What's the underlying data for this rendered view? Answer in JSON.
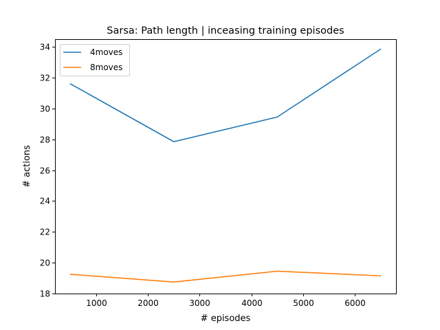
{
  "chart_data": {
    "type": "line",
    "title": "Sarsa: Path length | inceasing training episodes",
    "xlabel": "# episodes",
    "ylabel": "# actions",
    "x": [
      500,
      2500,
      4500,
      6500
    ],
    "xlim": [
      200,
      6800
    ],
    "ylim": [
      18,
      34.5
    ],
    "xticks": [
      1000,
      2000,
      3000,
      4000,
      5000,
      6000
    ],
    "yticks": [
      18,
      20,
      22,
      24,
      26,
      28,
      30,
      32,
      34
    ],
    "grid": false,
    "legend_position": "upper-left",
    "series": [
      {
        "name": "4moves",
        "color": "#1f77b4",
        "values": [
          31.6,
          27.85,
          29.45,
          33.85
        ]
      },
      {
        "name": "8moves",
        "color": "#ff7f0e",
        "values": [
          19.25,
          18.75,
          19.45,
          19.15
        ]
      }
    ]
  }
}
